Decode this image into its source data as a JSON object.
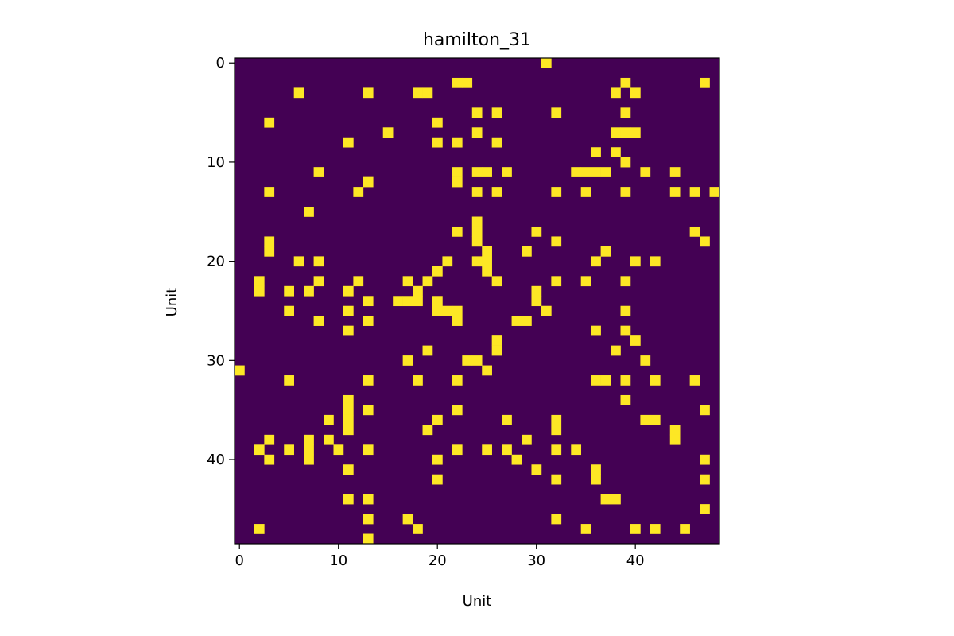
{
  "chart_data": {
    "type": "heatmap",
    "title": "hamilton_31",
    "xlabel": "Unit",
    "ylabel": "Unit",
    "size": 49,
    "xticks": [
      0,
      10,
      20,
      30,
      40
    ],
    "yticks": [
      0,
      10,
      20,
      30,
      40
    ],
    "grid": false,
    "colors": {
      "zero": "#440154",
      "one": "#fde725",
      "axis": "#000000"
    },
    "cells": [
      [
        0,
        31
      ],
      [
        2,
        22
      ],
      [
        2,
        23
      ],
      [
        2,
        39
      ],
      [
        2,
        47
      ],
      [
        3,
        6
      ],
      [
        3,
        13
      ],
      [
        3,
        18
      ],
      [
        3,
        19
      ],
      [
        3,
        38
      ],
      [
        3,
        40
      ],
      [
        5,
        24
      ],
      [
        5,
        26
      ],
      [
        5,
        32
      ],
      [
        5,
        39
      ],
      [
        6,
        3
      ],
      [
        6,
        20
      ],
      [
        7,
        15
      ],
      [
        7,
        24
      ],
      [
        7,
        38
      ],
      [
        7,
        39
      ],
      [
        7,
        40
      ],
      [
        8,
        11
      ],
      [
        8,
        20
      ],
      [
        8,
        22
      ],
      [
        8,
        26
      ],
      [
        9,
        36
      ],
      [
        9,
        38
      ],
      [
        10,
        39
      ],
      [
        11,
        8
      ],
      [
        11,
        22
      ],
      [
        11,
        24
      ],
      [
        11,
        25
      ],
      [
        11,
        27
      ],
      [
        11,
        34
      ],
      [
        11,
        35
      ],
      [
        11,
        36
      ],
      [
        11,
        37
      ],
      [
        11,
        41
      ],
      [
        11,
        44
      ],
      [
        12,
        13
      ],
      [
        12,
        22
      ],
      [
        13,
        3
      ],
      [
        13,
        12
      ],
      [
        13,
        24
      ],
      [
        13,
        26
      ],
      [
        13,
        32
      ],
      [
        13,
        35
      ],
      [
        13,
        39
      ],
      [
        13,
        44
      ],
      [
        13,
        46
      ],
      [
        13,
        48
      ],
      [
        15,
        7
      ],
      [
        16,
        24
      ],
      [
        17,
        22
      ],
      [
        17,
        24
      ],
      [
        17,
        30
      ],
      [
        17,
        46
      ],
      [
        18,
        3
      ],
      [
        18,
        24
      ],
      [
        18,
        32
      ],
      [
        18,
        47
      ],
      [
        19,
        3
      ],
      [
        19,
        25
      ],
      [
        19,
        29
      ],
      [
        19,
        37
      ],
      [
        20,
        6
      ],
      [
        20,
        8
      ],
      [
        20,
        21
      ],
      [
        20,
        24
      ],
      [
        20,
        25
      ],
      [
        20,
        36
      ],
      [
        20,
        40
      ],
      [
        20,
        42
      ],
      [
        21,
        20
      ],
      [
        21,
        25
      ],
      [
        22,
        2
      ],
      [
        22,
        8
      ],
      [
        22,
        12
      ],
      [
        22,
        17
      ],
      [
        22,
        19
      ],
      [
        22,
        26
      ],
      [
        22,
        32
      ],
      [
        22,
        35
      ],
      [
        22,
        39
      ],
      [
        23,
        2
      ],
      [
        23,
        5
      ],
      [
        23,
        7
      ],
      [
        23,
        11
      ],
      [
        23,
        18
      ],
      [
        23,
        30
      ],
      [
        24,
        13
      ],
      [
        24,
        16
      ],
      [
        24,
        17
      ],
      [
        24,
        18
      ],
      [
        24,
        20
      ],
      [
        24,
        30
      ],
      [
        25,
        5
      ],
      [
        25,
        11
      ],
      [
        25,
        20
      ],
      [
        25,
        21
      ],
      [
        25,
        22
      ],
      [
        25,
        31
      ],
      [
        25,
        39
      ],
      [
        26,
        8
      ],
      [
        26,
        13
      ],
      [
        26,
        22
      ],
      [
        26,
        28
      ],
      [
        26,
        29
      ],
      [
        27,
        11
      ],
      [
        27,
        36
      ],
      [
        27,
        39
      ],
      [
        28,
        26
      ],
      [
        28,
        40
      ],
      [
        29,
        19
      ],
      [
        29,
        26
      ],
      [
        29,
        38
      ],
      [
        30,
        17
      ],
      [
        30,
        23
      ],
      [
        30,
        24
      ],
      [
        30,
        41
      ],
      [
        31,
        0
      ],
      [
        31,
        25
      ],
      [
        32,
        5
      ],
      [
        32,
        13
      ],
      [
        32,
        18
      ],
      [
        32,
        22
      ],
      [
        32,
        36
      ],
      [
        32,
        37
      ],
      [
        32,
        39
      ],
      [
        32,
        42
      ],
      [
        32,
        46
      ],
      [
        34,
        11
      ],
      [
        34,
        39
      ],
      [
        35,
        11
      ],
      [
        35,
        13
      ],
      [
        35,
        22
      ],
      [
        35,
        47
      ],
      [
        36,
        9
      ],
      [
        36,
        11
      ],
      [
        36,
        20
      ],
      [
        36,
        27
      ],
      [
        36,
        32
      ],
      [
        36,
        41
      ],
      [
        36,
        42
      ],
      [
        37,
        11
      ],
      [
        37,
        19
      ],
      [
        37,
        32
      ],
      [
        37,
        44
      ],
      [
        38,
        3
      ],
      [
        38,
        7
      ],
      [
        38,
        9
      ],
      [
        38,
        29
      ],
      [
        38,
        44
      ],
      [
        39,
        2
      ],
      [
        39,
        5
      ],
      [
        39,
        7
      ],
      [
        39,
        10
      ],
      [
        39,
        13
      ],
      [
        39,
        22
      ],
      [
        39,
        25
      ],
      [
        39,
        27
      ],
      [
        39,
        32
      ],
      [
        39,
        34
      ],
      [
        40,
        3
      ],
      [
        40,
        7
      ],
      [
        40,
        20
      ],
      [
        40,
        28
      ],
      [
        40,
        47
      ],
      [
        41,
        11
      ],
      [
        41,
        30
      ],
      [
        41,
        36
      ],
      [
        42,
        20
      ],
      [
        42,
        32
      ],
      [
        42,
        36
      ],
      [
        42,
        47
      ],
      [
        44,
        11
      ],
      [
        44,
        13
      ],
      [
        44,
        37
      ],
      [
        44,
        38
      ],
      [
        45,
        47
      ],
      [
        46,
        13
      ],
      [
        46,
        17
      ],
      [
        46,
        32
      ],
      [
        47,
        2
      ],
      [
        47,
        18
      ],
      [
        47,
        35
      ],
      [
        47,
        40
      ],
      [
        47,
        42
      ],
      [
        47,
        45
      ],
      [
        48,
        13
      ]
    ]
  }
}
